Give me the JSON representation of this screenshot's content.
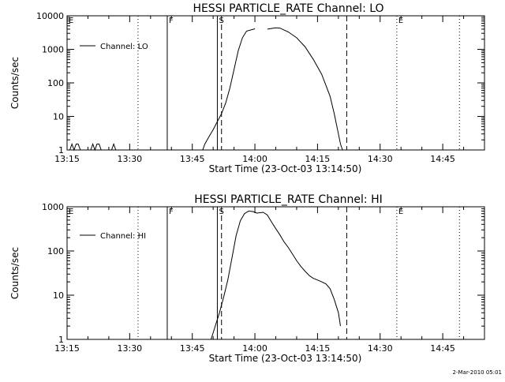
{
  "footer_timestamp": "2-Mar-2010 05:01",
  "chart_data": [
    {
      "type": "line",
      "title": "HESSI PARTICLE_RATE Channel: LO",
      "xlabel": "Start Time (23-Oct-03 13:14:50)",
      "ylabel": "Counts/sec",
      "yscale": "log",
      "ylim": [
        1,
        10000
      ],
      "xlim": [
        "13:15",
        "14:55"
      ],
      "x_ticks": [
        "13:15",
        "13:30",
        "13:45",
        "14:00",
        "14:15",
        "14:30",
        "14:45"
      ],
      "y_ticks": [
        "1",
        "10",
        "100",
        "1000",
        "10000"
      ],
      "legend": {
        "position": "top-left",
        "entries": [
          "Channel: LO"
        ]
      },
      "markers": [
        {
          "label": "E",
          "time": "13:15",
          "style": "none"
        },
        {
          "label": "",
          "time": "13:32",
          "style": "dotted"
        },
        {
          "label": "F",
          "time": "13:39",
          "style": "solid"
        },
        {
          "label": "S",
          "time": "13:51",
          "style": "solid"
        },
        {
          "label": "",
          "time": "13:52",
          "style": "dashed"
        },
        {
          "label": "",
          "time": "14:22",
          "style": "dashed"
        },
        {
          "label": "E",
          "time": "14:34",
          "style": "dotted"
        },
        {
          "label": "",
          "time": "14:49",
          "style": "dotted"
        }
      ],
      "series": [
        {
          "name": "Channel: LO",
          "points": [
            [
              "13:15:40",
              1
            ],
            [
              "13:16:10",
              1.5
            ],
            [
              "13:16:40",
              1
            ],
            [
              "13:17:10",
              1.5
            ],
            [
              "13:17:40",
              1.5
            ],
            [
              "13:18:10",
              1
            ],
            [
              "13:20:40",
              1
            ],
            [
              "13:21:10",
              1.5
            ],
            [
              "13:21:40",
              1
            ],
            [
              "13:22:10",
              1.5
            ],
            [
              "13:22:40",
              1.5
            ],
            [
              "13:23:10",
              1
            ],
            [
              "13:25:40",
              1
            ],
            [
              "13:26:10",
              1.5
            ],
            [
              "13:26:40",
              1
            ],
            [
              "13:47:30",
              1
            ],
            [
              "13:48:00",
              1.5
            ],
            [
              "13:49:00",
              2.5
            ],
            [
              "13:50:00",
              4
            ],
            [
              "13:51:00",
              7
            ],
            [
              "13:52:00",
              12
            ],
            [
              "13:53:00",
              25
            ],
            [
              "13:54:00",
              70
            ],
            [
              "13:55:00",
              250
            ],
            [
              "13:56:00",
              900
            ],
            [
              "13:57:00",
              2200
            ],
            [
              "13:58:00",
              3500
            ],
            [
              "14:00:00",
              4100
            ],
            [
              "14:03:00",
              4000
            ],
            [
              "14:05:00",
              4400
            ],
            [
              "14:06:00",
              4300
            ],
            [
              "14:08:00",
              3300
            ],
            [
              "14:10:00",
              2200
            ],
            [
              "14:12:00",
              1200
            ],
            [
              "14:14:00",
              500
            ],
            [
              "14:16:00",
              180
            ],
            [
              "14:18:00",
              40
            ],
            [
              "14:19:00",
              12
            ],
            [
              "14:20:00",
              3
            ],
            [
              "14:20:30",
              1.5
            ],
            [
              "14:21:00",
              1
            ]
          ]
        }
      ]
    },
    {
      "type": "line",
      "title": "HESSI PARTICLE_RATE Channel: HI",
      "xlabel": "Start Time (23-Oct-03 13:14:50)",
      "ylabel": "Counts/sec",
      "yscale": "log",
      "ylim": [
        1,
        1000
      ],
      "xlim": [
        "13:15",
        "14:55"
      ],
      "x_ticks": [
        "13:15",
        "13:30",
        "13:45",
        "14:00",
        "14:15",
        "14:30",
        "14:45"
      ],
      "y_ticks": [
        "1",
        "10",
        "100",
        "1000"
      ],
      "legend": {
        "position": "top-left",
        "entries": [
          "Channel: HI"
        ]
      },
      "markers": [
        {
          "label": "E",
          "time": "13:15",
          "style": "none"
        },
        {
          "label": "",
          "time": "13:32",
          "style": "dotted"
        },
        {
          "label": "F",
          "time": "13:39",
          "style": "solid"
        },
        {
          "label": "S",
          "time": "13:51",
          "style": "solid"
        },
        {
          "label": "",
          "time": "13:52",
          "style": "dashed"
        },
        {
          "label": "",
          "time": "14:22",
          "style": "dashed"
        },
        {
          "label": "E",
          "time": "14:34",
          "style": "dotted"
        },
        {
          "label": "",
          "time": "14:49",
          "style": "dotted"
        }
      ],
      "series": [
        {
          "name": "Channel: HI",
          "points": [
            [
              "13:49:30",
              1
            ],
            [
              "13:50:30",
              2
            ],
            [
              "13:51:30",
              4
            ],
            [
              "13:52:30",
              9
            ],
            [
              "13:53:30",
              22
            ],
            [
              "13:54:30",
              70
            ],
            [
              "13:55:30",
              220
            ],
            [
              "13:56:30",
              480
            ],
            [
              "13:57:30",
              700
            ],
            [
              "13:58:30",
              800
            ],
            [
              "13:59:30",
              780
            ],
            [
              "14:00:30",
              720
            ],
            [
              "14:02:00",
              750
            ],
            [
              "14:03:00",
              650
            ],
            [
              "14:04:00",
              450
            ],
            [
              "14:05:00",
              320
            ],
            [
              "14:06:00",
              230
            ],
            [
              "14:07:00",
              160
            ],
            [
              "14:08:00",
              120
            ],
            [
              "14:09:00",
              85
            ],
            [
              "14:10:00",
              60
            ],
            [
              "14:11:00",
              45
            ],
            [
              "14:12:00",
              35
            ],
            [
              "14:13:00",
              28
            ],
            [
              "14:14:00",
              24
            ],
            [
              "14:15:00",
              22
            ],
            [
              "14:16:00",
              20
            ],
            [
              "14:17:00",
              18
            ],
            [
              "14:18:00",
              14
            ],
            [
              "14:19:00",
              8
            ],
            [
              "14:20:00",
              4
            ],
            [
              "14:20:30",
              2
            ]
          ]
        }
      ]
    }
  ]
}
